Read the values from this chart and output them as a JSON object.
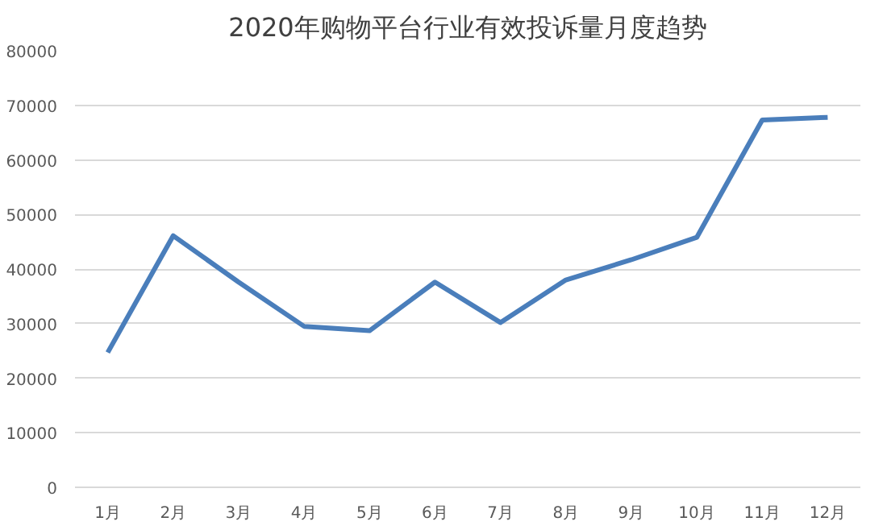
{
  "chart_data": {
    "type": "line",
    "title": "2020年购物平台行业有效投诉量月度趋势",
    "categories": [
      "1月",
      "2月",
      "3月",
      "4月",
      "5月",
      "6月",
      "7月",
      "8月",
      "9月",
      "10月",
      "11月",
      "12月"
    ],
    "series": [
      {
        "color": "#4a7ebb",
        "values": [
          24700,
          46100,
          37600,
          29500,
          28700,
          37600,
          30200,
          38000,
          41700,
          45800,
          67300,
          67800
        ]
      }
    ],
    "ylim": [
      0,
      80000
    ],
    "yticks": [
      0,
      10000,
      20000,
      30000,
      40000,
      50000,
      60000,
      70000,
      80000
    ],
    "grid": "y",
    "line_style": "solid"
  }
}
